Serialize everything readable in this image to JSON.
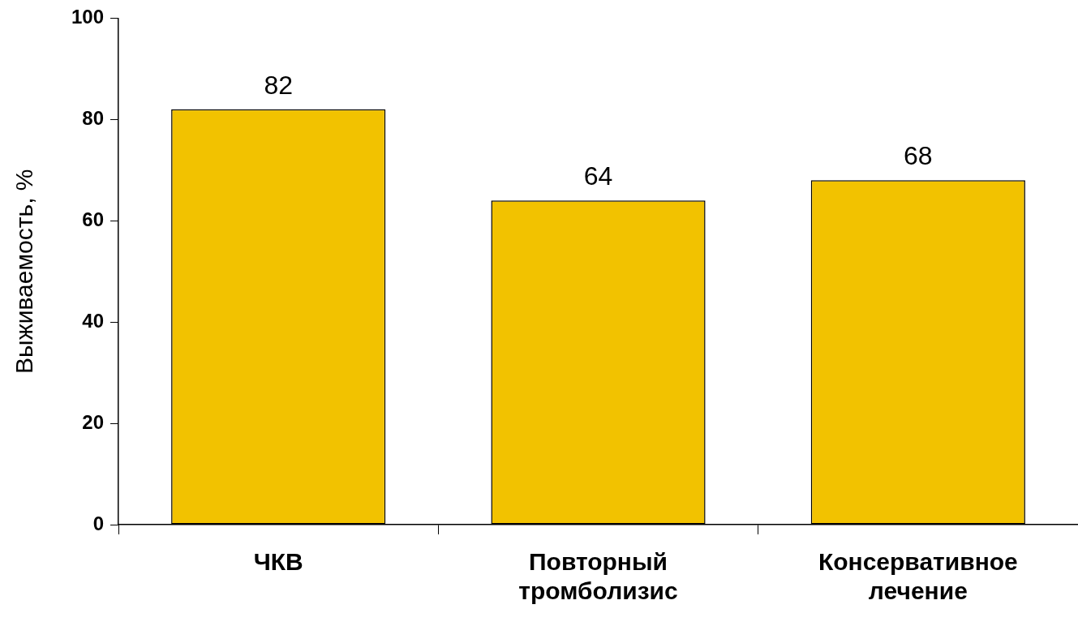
{
  "chart_data": {
    "type": "bar",
    "ylabel": "Выживаемость, %",
    "categories": [
      "ЧКВ",
      "Повторный тромболизис",
      "Консервативное лечение"
    ],
    "values": [
      82,
      64,
      68
    ],
    "color": "#f2c200",
    "ylim": [
      0,
      100
    ],
    "yticks": [
      0,
      20,
      40,
      60,
      80,
      100
    ],
    "grid": false,
    "legend": false,
    "data_labels": true
  }
}
